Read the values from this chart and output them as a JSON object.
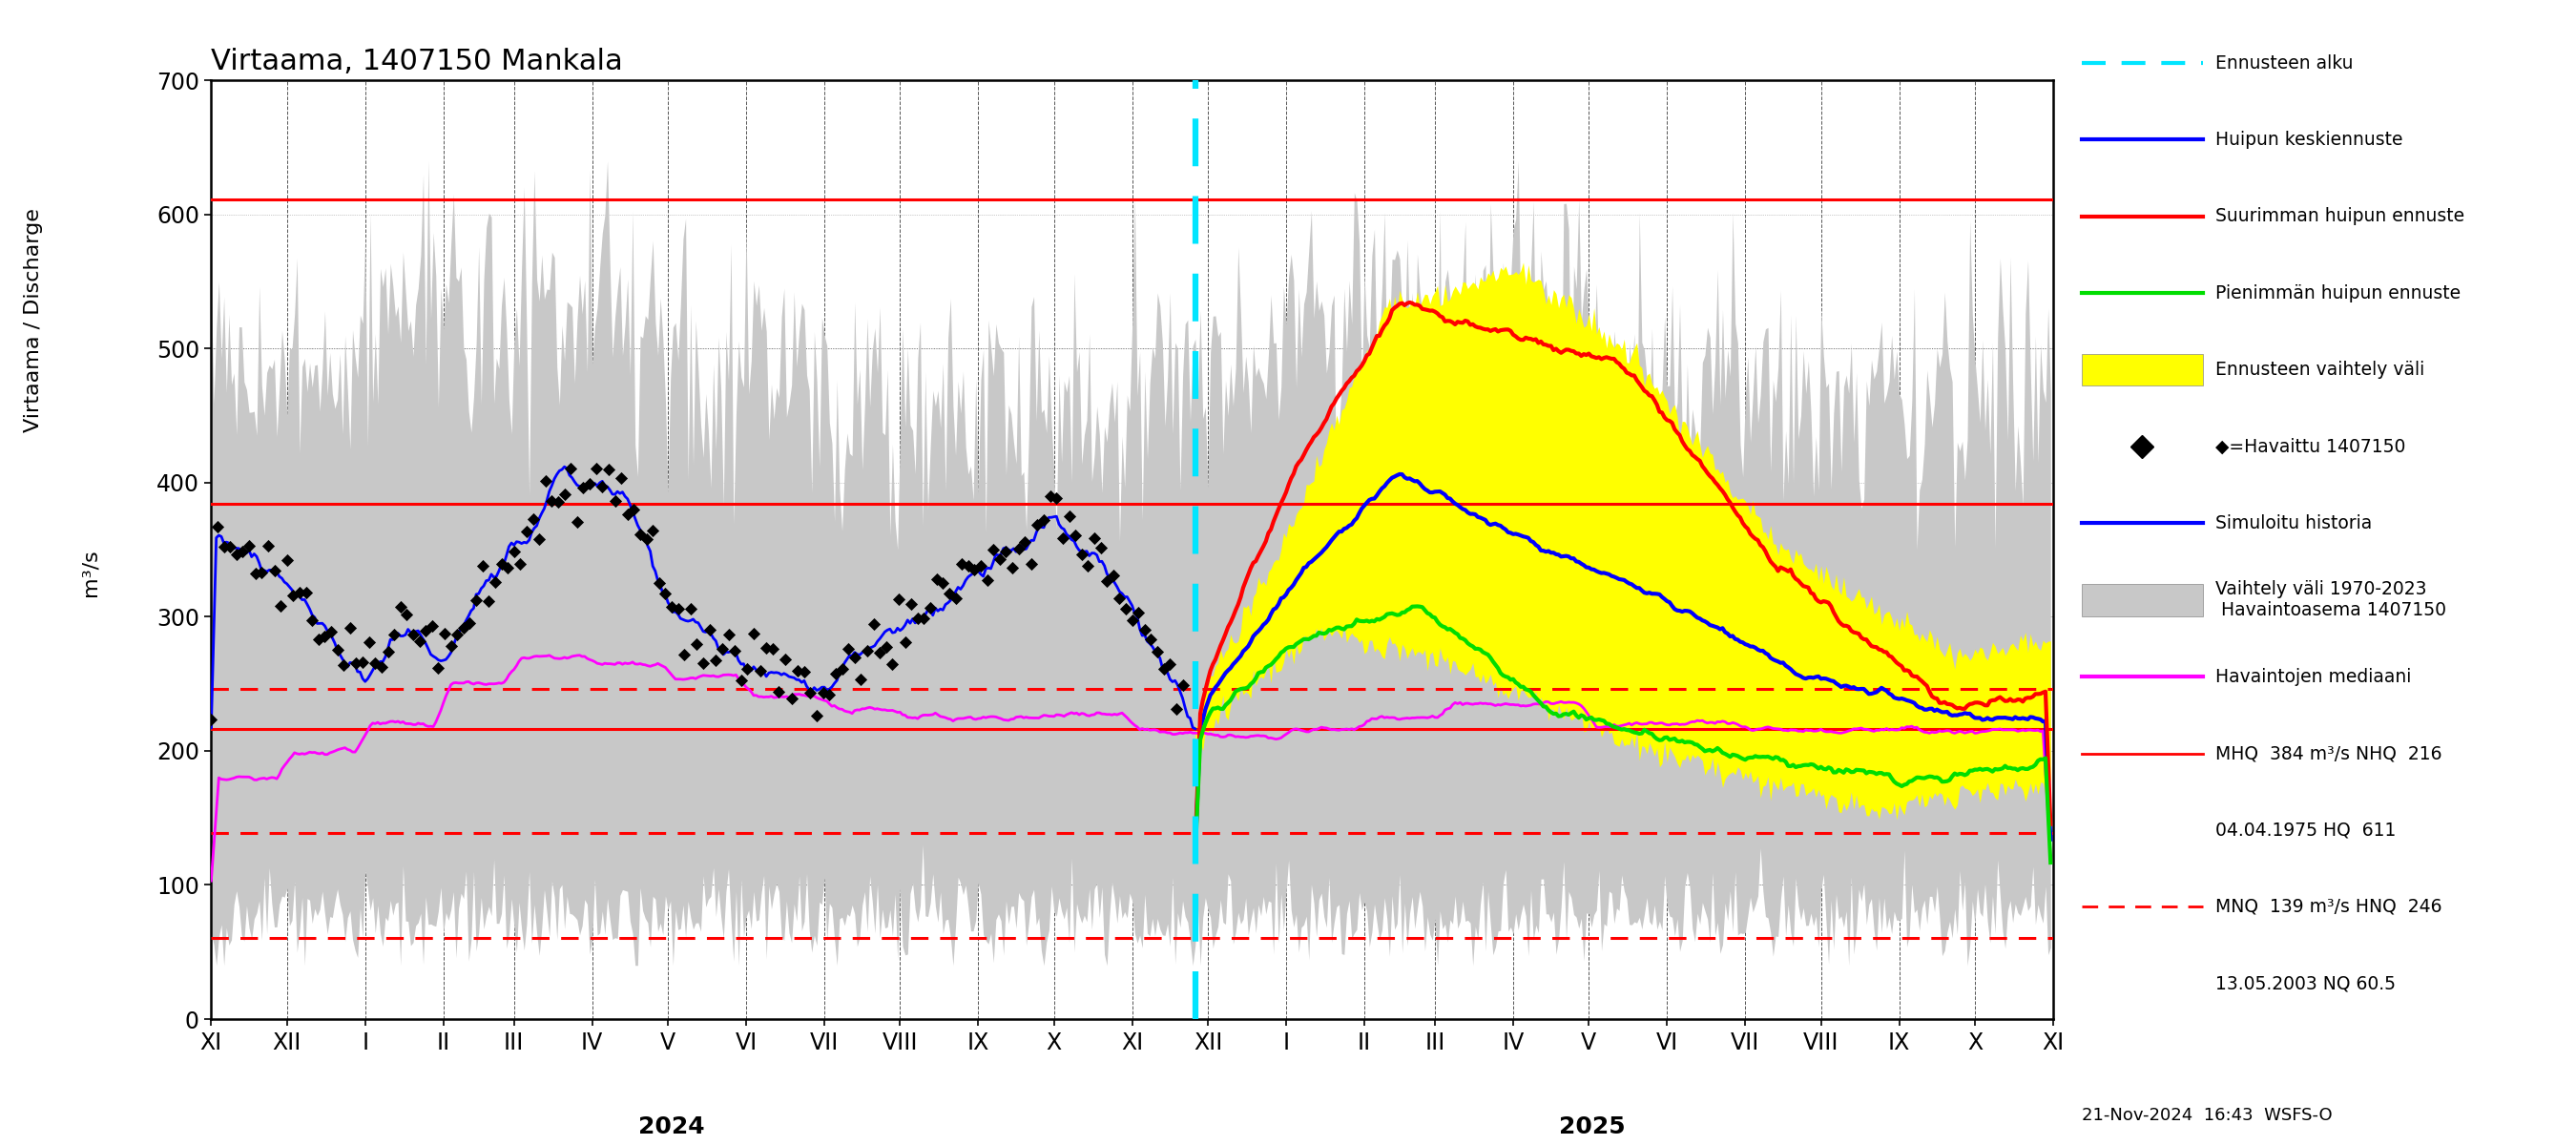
{
  "title": "Virtaama, 1407150 Mankala",
  "ylim": [
    0,
    700
  ],
  "yticks": [
    0,
    100,
    200,
    300,
    400,
    500,
    600,
    700
  ],
  "gray_color": "#c8c8c8",
  "yellow_color": "#ffff00",
  "cyan_color": "#00e5ff",
  "blue_color": "#0000ff",
  "red_color": "#ff0000",
  "green_color": "#00dd00",
  "magenta_color": "#ff00ff",
  "black_color": "#000000",
  "hlines_solid": [
    611,
    384,
    216
  ],
  "hlines_dashed": [
    246,
    139,
    60.5
  ],
  "total_days": 730,
  "forecast_day": 390,
  "month_positions": [
    0,
    30,
    61,
    92,
    120,
    151,
    181,
    212,
    243,
    273,
    304,
    334,
    365,
    395,
    426,
    457,
    485,
    516,
    546,
    577,
    608,
    638,
    669,
    699,
    730
  ],
  "month_labels": [
    "XI",
    "XII",
    "I",
    "II",
    "III",
    "IV",
    "V",
    "VI",
    "VII",
    "VIII",
    "IX",
    "X",
    "XI",
    "XII",
    "I",
    "II",
    "III",
    "IV",
    "V",
    "VI",
    "VII",
    "VIII",
    "IX",
    "X",
    "XI"
  ],
  "year_labels": [
    "2024",
    "2025"
  ],
  "footer_text": "21-Nov-2024  16:43  WSFS-O",
  "legend_items": [
    {
      "label": "Ennusteen alku",
      "style": "dashed_cyan"
    },
    {
      "label": "Huipun keskiennuste",
      "style": "solid_blue"
    },
    {
      "label": "Suurimman huipun ennuste",
      "style": "solid_red"
    },
    {
      "label": "Pienimmän huipun ennuste",
      "style": "solid_green"
    },
    {
      "label": "Ennusteen vaihtelу väli",
      "style": "patch_yellow"
    },
    {
      "label": "◆=Havaittu 1407150",
      "style": "diamond"
    },
    {
      "label": "Simuloitu historia",
      "style": "solid_blue"
    },
    {
      "label": "Vaihtelу väli 1970-2023\n Havaintoasema 1407150",
      "style": "patch_gray"
    },
    {
      "label": "Havaintojen mediaani",
      "style": "solid_magenta"
    },
    {
      "label": "MHQ  384 m³/s NHQ  216",
      "style": "solid_red_thin"
    },
    {
      "label": "04.04.1975 HQ  611",
      "style": "none"
    },
    {
      "label": "MNQ  139 m³/s HNQ  246",
      "style": "dashed_red"
    },
    {
      "label": "13.05.2003 NQ 60.5",
      "style": "none"
    }
  ]
}
